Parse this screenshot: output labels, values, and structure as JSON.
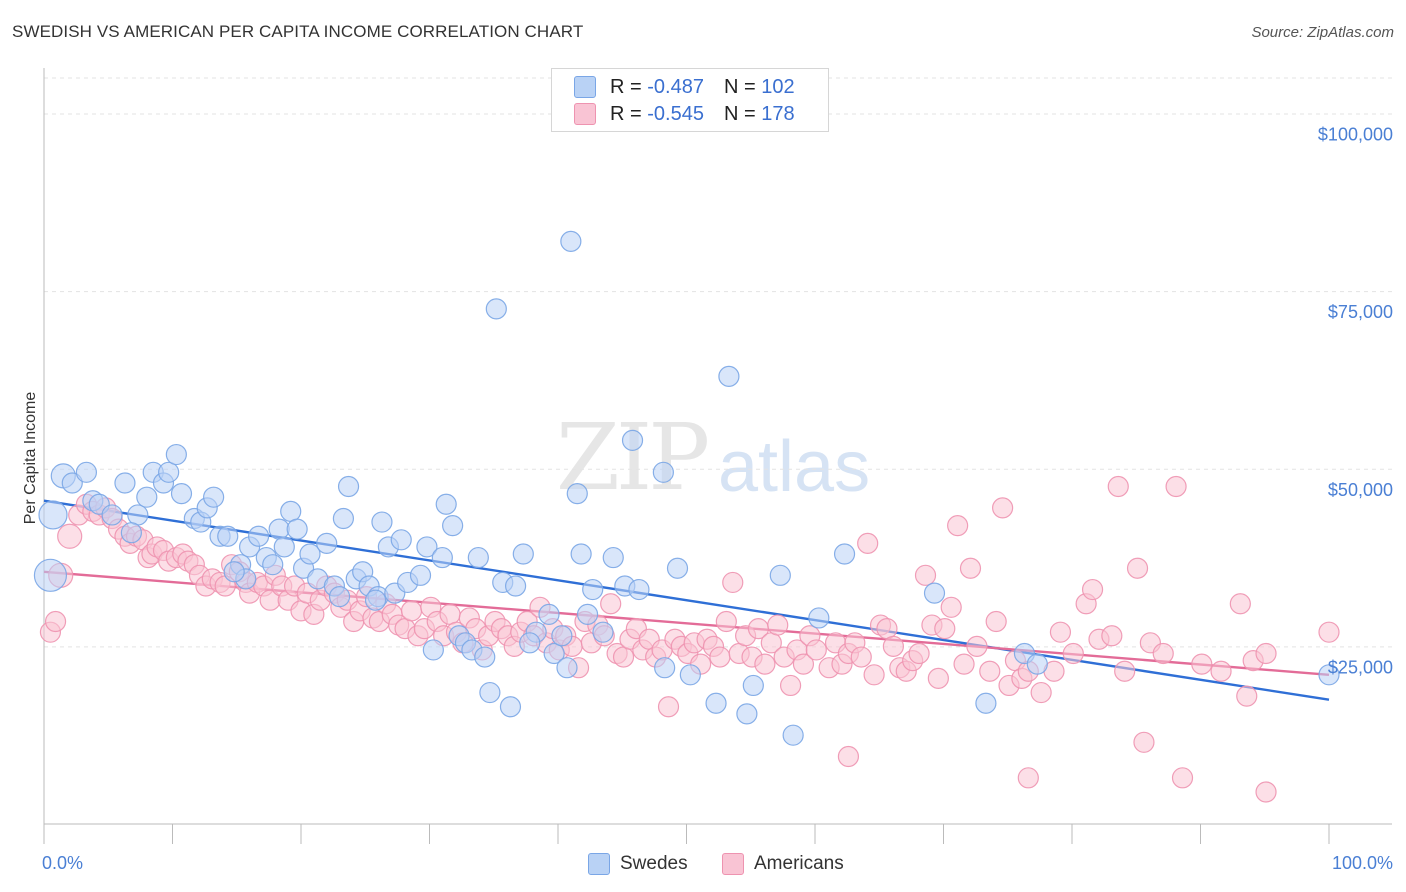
{
  "header": {
    "title": "SWEDISH VS AMERICAN PER CAPITA INCOME CORRELATION CHART",
    "source": "Source: ZipAtlas.com"
  },
  "watermark": {
    "zip": "ZIP",
    "atlas": "atlas"
  },
  "legend": {
    "r_label": "R =",
    "n_label": "N =",
    "rows": [
      {
        "r": "-0.487",
        "n": "102",
        "fill": "#b9d2f5",
        "stroke": "#7aa6e6"
      },
      {
        "r": "-0.545",
        "n": "178",
        "fill": "#f9c4d4",
        "stroke": "#ee93b0"
      }
    ]
  },
  "bottom_legend": [
    {
      "label": "Swedes",
      "fill": "#b9d2f5",
      "stroke": "#7aa6e6"
    },
    {
      "label": "Americans",
      "fill": "#f9c4d4",
      "stroke": "#ee93b0"
    }
  ],
  "chart_data": {
    "type": "scatter",
    "title": "SWEDISH VS AMERICAN PER CAPITA INCOME CORRELATION CHART",
    "ylabel": "Per Capita Income",
    "xlabel": "",
    "xlim": [
      0,
      100
    ],
    "ylim": [
      0,
      105000
    ],
    "x_tick_labels": [
      "0.0%",
      "100.0%"
    ],
    "y_ticks": [
      {
        "value": 25000,
        "label": "$25,000"
      },
      {
        "value": 50000,
        "label": "$50,000"
      },
      {
        "value": 75000,
        "label": "$75,000"
      },
      {
        "value": 100000,
        "label": "$100,000"
      }
    ],
    "grid": "horizontal dashed",
    "legend_position": "top-center",
    "series": [
      {
        "name": "Swedes",
        "color": "#7aa6e6",
        "fill": "#b9d2f5",
        "line_color": "#2f6fd6",
        "trend": {
          "x": [
            0,
            100
          ],
          "y": [
            45500,
            17500
          ]
        },
        "points": [
          [
            0.5,
            35000
          ],
          [
            0.7,
            43500
          ],
          [
            1.5,
            49000
          ],
          [
            2.2,
            48000
          ],
          [
            3.3,
            49500
          ],
          [
            3.8,
            45500
          ],
          [
            4.3,
            45000
          ],
          [
            5.3,
            43500
          ],
          [
            6.3,
            48000
          ],
          [
            7.3,
            43500
          ],
          [
            8.0,
            46000
          ],
          [
            8.5,
            49500
          ],
          [
            9.3,
            48000
          ],
          [
            9.7,
            49500
          ],
          [
            10.3,
            52000
          ],
          [
            10.7,
            46500
          ],
          [
            11.7,
            43000
          ],
          [
            12.2,
            42500
          ],
          [
            12.7,
            44500
          ],
          [
            13.2,
            46000
          ],
          [
            13.7,
            40500
          ],
          [
            14.3,
            40500
          ],
          [
            15.3,
            36500
          ],
          [
            15.7,
            34500
          ],
          [
            16.0,
            39000
          ],
          [
            16.7,
            40500
          ],
          [
            17.3,
            37500
          ],
          [
            17.8,
            36500
          ],
          [
            18.3,
            41500
          ],
          [
            18.7,
            39000
          ],
          [
            19.2,
            44000
          ],
          [
            19.7,
            41500
          ],
          [
            20.2,
            36000
          ],
          [
            20.7,
            38000
          ],
          [
            21.3,
            34500
          ],
          [
            22.0,
            39500
          ],
          [
            22.6,
            33500
          ],
          [
            23.0,
            32000
          ],
          [
            23.3,
            43000
          ],
          [
            23.7,
            47500
          ],
          [
            24.3,
            34500
          ],
          [
            24.8,
            35500
          ],
          [
            25.3,
            33500
          ],
          [
            26.0,
            32000
          ],
          [
            26.3,
            42500
          ],
          [
            26.8,
            39000
          ],
          [
            27.3,
            32500
          ],
          [
            27.8,
            40000
          ],
          [
            28.3,
            34000
          ],
          [
            29.3,
            35000
          ],
          [
            29.8,
            39000
          ],
          [
            30.3,
            24500
          ],
          [
            31.0,
            37500
          ],
          [
            31.3,
            45000
          ],
          [
            31.8,
            42000
          ],
          [
            32.3,
            26500
          ],
          [
            32.8,
            25500
          ],
          [
            33.3,
            24500
          ],
          [
            33.8,
            37500
          ],
          [
            34.3,
            23500
          ],
          [
            34.7,
            18500
          ],
          [
            35.2,
            72500
          ],
          [
            35.7,
            34000
          ],
          [
            36.3,
            16500
          ],
          [
            36.7,
            33500
          ],
          [
            37.3,
            38000
          ],
          [
            38.3,
            27000
          ],
          [
            39.3,
            29500
          ],
          [
            39.7,
            24000
          ],
          [
            40.3,
            26500
          ],
          [
            40.7,
            22000
          ],
          [
            41.0,
            82000
          ],
          [
            41.5,
            46500
          ],
          [
            41.8,
            38000
          ],
          [
            42.3,
            29500
          ],
          [
            42.7,
            33000
          ],
          [
            43.5,
            27000
          ],
          [
            44.3,
            37500
          ],
          [
            45.2,
            33500
          ],
          [
            45.8,
            54000
          ],
          [
            46.3,
            33000
          ],
          [
            48.2,
            49500
          ],
          [
            48.3,
            22000
          ],
          [
            49.3,
            36000
          ],
          [
            50.3,
            21000
          ],
          [
            52.3,
            17000
          ],
          [
            53.3,
            63000
          ],
          [
            54.7,
            15500
          ],
          [
            55.2,
            19500
          ],
          [
            57.3,
            35000
          ],
          [
            58.3,
            12500
          ],
          [
            62.3,
            38000
          ],
          [
            69.3,
            32500
          ],
          [
            73.3,
            17000
          ],
          [
            76.3,
            24000
          ],
          [
            77.3,
            22500
          ],
          [
            100.0,
            21000
          ],
          [
            6.8,
            41000
          ],
          [
            14.8,
            35500
          ],
          [
            25.8,
            31500
          ],
          [
            60.3,
            29000
          ],
          [
            37.8,
            25500
          ]
        ]
      },
      {
        "name": "Americans",
        "color": "#ee93b0",
        "fill": "#f9c4d4",
        "line_color": "#e36c98",
        "trend": {
          "x": [
            0,
            100
          ],
          "y": [
            35500,
            21000
          ]
        },
        "points": [
          [
            0.5,
            27000
          ],
          [
            0.9,
            28500
          ],
          [
            1.3,
            35000
          ],
          [
            2.0,
            40500
          ],
          [
            2.7,
            43500
          ],
          [
            3.3,
            45000
          ],
          [
            3.8,
            44000
          ],
          [
            4.3,
            43500
          ],
          [
            4.8,
            44500
          ],
          [
            5.3,
            43000
          ],
          [
            5.8,
            41500
          ],
          [
            6.3,
            40500
          ],
          [
            6.7,
            39500
          ],
          [
            7.2,
            40500
          ],
          [
            7.7,
            40000
          ],
          [
            8.1,
            37500
          ],
          [
            8.4,
            38000
          ],
          [
            8.8,
            39000
          ],
          [
            9.3,
            38500
          ],
          [
            9.7,
            37000
          ],
          [
            10.3,
            37500
          ],
          [
            10.8,
            38000
          ],
          [
            11.2,
            37000
          ],
          [
            11.7,
            36500
          ],
          [
            12.1,
            35000
          ],
          [
            12.6,
            33500
          ],
          [
            13.1,
            34500
          ],
          [
            13.7,
            34000
          ],
          [
            14.1,
            33500
          ],
          [
            14.6,
            36500
          ],
          [
            15.2,
            35500
          ],
          [
            15.7,
            34000
          ],
          [
            16.0,
            32500
          ],
          [
            16.6,
            34000
          ],
          [
            17.1,
            33500
          ],
          [
            17.6,
            31500
          ],
          [
            18.0,
            35000
          ],
          [
            18.5,
            33500
          ],
          [
            19.0,
            31500
          ],
          [
            19.5,
            33500
          ],
          [
            20.0,
            30000
          ],
          [
            20.5,
            32500
          ],
          [
            21.0,
            29500
          ],
          [
            21.5,
            31500
          ],
          [
            22.0,
            33500
          ],
          [
            22.6,
            32500
          ],
          [
            23.1,
            30500
          ],
          [
            23.6,
            31500
          ],
          [
            24.1,
            28500
          ],
          [
            24.6,
            30000
          ],
          [
            25.1,
            32000
          ],
          [
            25.6,
            29000
          ],
          [
            26.1,
            28500
          ],
          [
            26.6,
            31000
          ],
          [
            27.1,
            29500
          ],
          [
            27.6,
            28000
          ],
          [
            28.1,
            27500
          ],
          [
            28.6,
            30000
          ],
          [
            29.1,
            26500
          ],
          [
            29.6,
            27500
          ],
          [
            30.1,
            30500
          ],
          [
            30.6,
            28500
          ],
          [
            31.1,
            26500
          ],
          [
            31.6,
            29500
          ],
          [
            32.1,
            27000
          ],
          [
            32.6,
            25500
          ],
          [
            33.1,
            29000
          ],
          [
            33.6,
            27500
          ],
          [
            34.1,
            24500
          ],
          [
            34.6,
            26500
          ],
          [
            35.1,
            28500
          ],
          [
            35.6,
            27500
          ],
          [
            36.1,
            26500
          ],
          [
            36.6,
            25000
          ],
          [
            37.1,
            27000
          ],
          [
            37.6,
            28500
          ],
          [
            38.1,
            26500
          ],
          [
            38.6,
            30500
          ],
          [
            39.1,
            25500
          ],
          [
            39.6,
            27500
          ],
          [
            40.1,
            24500
          ],
          [
            40.6,
            26500
          ],
          [
            41.1,
            25000
          ],
          [
            41.6,
            22000
          ],
          [
            42.1,
            28500
          ],
          [
            42.6,
            25500
          ],
          [
            43.1,
            28000
          ],
          [
            43.6,
            26500
          ],
          [
            44.1,
            31000
          ],
          [
            44.6,
            24000
          ],
          [
            45.1,
            23500
          ],
          [
            45.6,
            26000
          ],
          [
            46.1,
            27500
          ],
          [
            46.6,
            24500
          ],
          [
            47.1,
            26000
          ],
          [
            47.6,
            23500
          ],
          [
            48.1,
            24500
          ],
          [
            48.6,
            16500
          ],
          [
            49.1,
            26000
          ],
          [
            49.6,
            25000
          ],
          [
            50.1,
            24000
          ],
          [
            50.6,
            25500
          ],
          [
            51.1,
            22500
          ],
          [
            51.6,
            26000
          ],
          [
            52.1,
            25000
          ],
          [
            52.6,
            23500
          ],
          [
            53.1,
            28500
          ],
          [
            53.6,
            34000
          ],
          [
            54.1,
            24000
          ],
          [
            54.6,
            26500
          ],
          [
            55.1,
            23500
          ],
          [
            55.6,
            27500
          ],
          [
            56.1,
            22500
          ],
          [
            56.6,
            25500
          ],
          [
            57.1,
            28000
          ],
          [
            57.6,
            23500
          ],
          [
            58.1,
            19500
          ],
          [
            58.6,
            24500
          ],
          [
            59.1,
            22500
          ],
          [
            59.6,
            26500
          ],
          [
            60.1,
            24500
          ],
          [
            61.1,
            22000
          ],
          [
            61.6,
            25500
          ],
          [
            62.1,
            22500
          ],
          [
            62.6,
            24000
          ],
          [
            63.1,
            25500
          ],
          [
            63.6,
            23500
          ],
          [
            64.1,
            39500
          ],
          [
            64.6,
            21000
          ],
          [
            65.1,
            28000
          ],
          [
            65.6,
            27500
          ],
          [
            66.1,
            25000
          ],
          [
            66.6,
            22000
          ],
          [
            67.1,
            21500
          ],
          [
            67.6,
            23000
          ],
          [
            68.1,
            24000
          ],
          [
            68.6,
            35000
          ],
          [
            69.1,
            28000
          ],
          [
            69.6,
            20500
          ],
          [
            70.1,
            27500
          ],
          [
            70.6,
            30500
          ],
          [
            71.1,
            42000
          ],
          [
            71.6,
            22500
          ],
          [
            72.1,
            36000
          ],
          [
            72.6,
            25000
          ],
          [
            73.6,
            21500
          ],
          [
            74.1,
            28500
          ],
          [
            74.6,
            44500
          ],
          [
            75.1,
            19500
          ],
          [
            75.6,
            23000
          ],
          [
            76.1,
            20500
          ],
          [
            76.6,
            21500
          ],
          [
            77.6,
            18500
          ],
          [
            78.6,
            21500
          ],
          [
            79.1,
            27000
          ],
          [
            80.1,
            24000
          ],
          [
            81.1,
            31000
          ],
          [
            81.6,
            33000
          ],
          [
            82.1,
            26000
          ],
          [
            83.1,
            26500
          ],
          [
            83.6,
            47500
          ],
          [
            84.1,
            21500
          ],
          [
            85.1,
            36000
          ],
          [
            86.1,
            25500
          ],
          [
            87.1,
            24000
          ],
          [
            88.1,
            47500
          ],
          [
            88.6,
            6500
          ],
          [
            93.1,
            31000
          ],
          [
            93.6,
            18000
          ],
          [
            94.1,
            23000
          ],
          [
            95.1,
            24000
          ],
          [
            100.0,
            27000
          ],
          [
            62.6,
            9500
          ],
          [
            76.6,
            6500
          ],
          [
            85.6,
            11500
          ],
          [
            95.1,
            4500
          ],
          [
            91.6,
            21500
          ],
          [
            90.1,
            22500
          ]
        ]
      }
    ]
  }
}
